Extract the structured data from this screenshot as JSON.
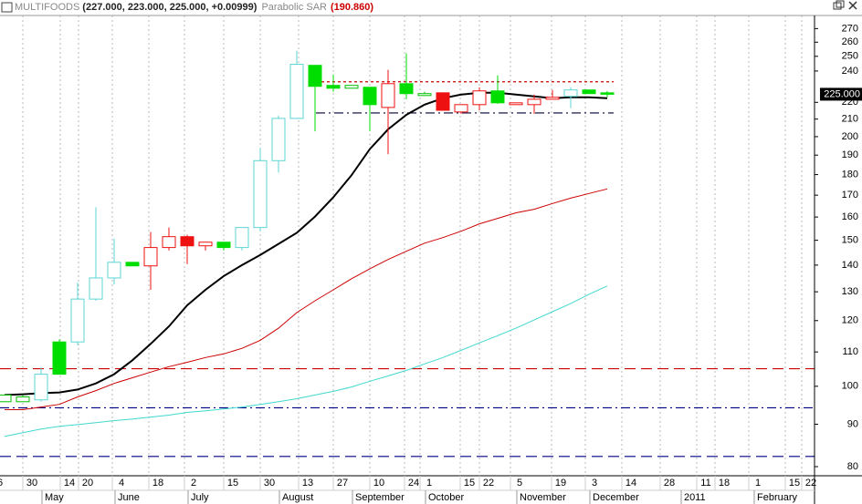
{
  "chart_data": {
    "type": "candlestick",
    "title": "MULTIFOODS",
    "subtitle": "(227.000, 223.000, 225.000, +0.00999)",
    "indicator": "Parabolic SAR",
    "indicator_value": "(190.860)",
    "log_scale": true,
    "xlim": [
      -0.25,
      44.35
    ],
    "ylim": [
      78,
      280
    ],
    "yticks": [
      80,
      90,
      100,
      110,
      120,
      130,
      140,
      150,
      160,
      170,
      180,
      190,
      200,
      210,
      220,
      240,
      250,
      260,
      270
    ],
    "xticks": [
      {
        "value": -0.75,
        "label": "6"
      },
      {
        "value": 1.0,
        "label": "30"
      },
      {
        "value": 3.05,
        "label": "14"
      },
      {
        "value": 4.05,
        "label": "20"
      },
      {
        "value": 5.9,
        "label": "4"
      },
      {
        "value": 7.9,
        "label": "18"
      },
      {
        "value": 9.85,
        "label": "2"
      },
      {
        "value": 12.0,
        "label": "15"
      },
      {
        "value": 14.0,
        "label": "30"
      },
      {
        "value": 16.1,
        "label": "13"
      },
      {
        "value": 18.0,
        "label": "27"
      },
      {
        "value": 20.0,
        "label": "10"
      },
      {
        "value": 21.9,
        "label": "24"
      },
      {
        "value": 22.75,
        "label": "1"
      },
      {
        "value": 24.95,
        "label": "15"
      },
      {
        "value": 26.0,
        "label": "22"
      },
      {
        "value": 27.7,
        "label": "5"
      },
      {
        "value": 29.95,
        "label": "19"
      },
      {
        "value": 31.8,
        "label": "3"
      },
      {
        "value": 33.8,
        "label": "14"
      },
      {
        "value": 35.9,
        "label": "28"
      },
      {
        "value": 37.9,
        "label": "11"
      },
      {
        "value": 38.9,
        "label": "18"
      },
      {
        "value": 40.75,
        "label": "1"
      },
      {
        "value": 42.75,
        "label": "15"
      },
      {
        "value": 43.65,
        "label": "22"
      }
    ],
    "month_ticks": [
      {
        "value": 2.05,
        "label": "May"
      },
      {
        "value": 6.05,
        "label": "June"
      },
      {
        "value": 10.05,
        "label": "July"
      },
      {
        "value": 15.05,
        "label": "August"
      },
      {
        "value": 19.05,
        "label": "September"
      },
      {
        "value": 23.05,
        "label": "October"
      },
      {
        "value": 28.05,
        "label": "November"
      },
      {
        "value": 32.05,
        "label": "December"
      },
      {
        "value": 37.05,
        "label": "2011"
      },
      {
        "value": 41.05,
        "label": "February"
      }
    ],
    "grid": true,
    "x": [
      0,
      1,
      2,
      3,
      4,
      5,
      6,
      7,
      8,
      9,
      10,
      11,
      12,
      13,
      14,
      15,
      16,
      17,
      18,
      19,
      20,
      21,
      22,
      23,
      24,
      25,
      26,
      27,
      28,
      29,
      30,
      31,
      32,
      33
    ],
    "open": [
      95.8,
      95.8,
      96.3,
      103.4,
      113.1,
      127.4,
      135.1,
      141.1,
      139.7,
      147.0,
      151.5,
      147.7,
      149.2,
      147.0,
      155.4,
      187.1,
      210.4,
      243.8,
      230.6,
      228.8,
      229.4,
      216.9,
      231.7,
      224.2,
      225.9,
      214.2,
      218.6,
      227.1,
      218.6,
      218.6,
      221.9,
      223.7,
      227.7,
      225.9
    ],
    "high": [
      97.6,
      97.6,
      105.3,
      113.9,
      133.4,
      164.4,
      150.7,
      141.1,
      153.5,
      155.4,
      152.3,
      149.2,
      149.2,
      155.4,
      193.9,
      212.0,
      253.9,
      243.8,
      237.7,
      230.6,
      229.4,
      240.8,
      252.1,
      226.5,
      225.9,
      218.6,
      229.4,
      237.1,
      219.7,
      224.8,
      227.7,
      229.4,
      227.7,
      227
    ],
    "low": [
      95.8,
      95.8,
      95.8,
      103.4,
      112.2,
      126.8,
      132.7,
      139.7,
      130.7,
      145.8,
      140.4,
      145.8,
      145.8,
      145.8,
      153.8,
      181.0,
      210.4,
      203.0,
      226.5,
      228.8,
      203.0,
      190.5,
      221.9,
      224.2,
      215.2,
      213.1,
      215.2,
      219.1,
      218.6,
      213.1,
      221.9,
      216.4,
      225.4,
      223
    ],
    "close": [
      97.6,
      97.1,
      103.4,
      113.1,
      127.4,
      135.1,
      141.1,
      139.7,
      147.0,
      151.5,
      147.7,
      149.2,
      147.0,
      155.4,
      187.1,
      210.4,
      244.5,
      230.0,
      228.8,
      230.6,
      218.6,
      231.7,
      225.4,
      225.4,
      215.2,
      218.6,
      227.1,
      219.7,
      219.7,
      221.9,
      223.1,
      227.7,
      225.4,
      225
    ],
    "colors": [
      "#00c000",
      "#00c000",
      "#5cd6d6",
      "#00dd00",
      "#5cd6d6",
      "#5cd6d6",
      "#5cd6d6",
      "#00dd00",
      "#ee1111",
      "#ee1111",
      "#ee1111",
      "#ee1111",
      "#00dd00",
      "#5cd6d6",
      "#5cd6d6",
      "#5cd6d6",
      "#5cd6d6",
      "#00dd00",
      "#00dd00",
      "#00c000",
      "#00dd00",
      "#ee1111",
      "#00dd00",
      "#00c000",
      "#ee1111",
      "#ee1111",
      "#ee1111",
      "#00dd00",
      "#ee1111",
      "#ee1111",
      "#ee1111",
      "#5cd6d6",
      "#00dd00",
      "#00dd00"
    ],
    "filled": [
      false,
      false,
      false,
      true,
      false,
      false,
      false,
      true,
      false,
      false,
      true,
      false,
      true,
      false,
      false,
      false,
      false,
      true,
      true,
      false,
      true,
      false,
      true,
      false,
      true,
      false,
      false,
      true,
      false,
      false,
      false,
      false,
      true,
      true
    ],
    "lines": [
      {
        "color": "#000000",
        "width": 2,
        "values": [
          97.6,
          97.8,
          98.1,
          98.3,
          99.1,
          100.8,
          103.4,
          107.5,
          112.5,
          118.1,
          125.2,
          130.7,
          135.8,
          140.0,
          144.0,
          148.5,
          153.1,
          160.2,
          169.0,
          179.7,
          193.2,
          204.1,
          212.5,
          218.6,
          222.5,
          224.8,
          225.9,
          225.9,
          224.8,
          223.7,
          222.5,
          223.1,
          223.1,
          222.5
        ]
      },
      {
        "color": "#cc0000",
        "width": 1,
        "values": [
          93.7,
          93.7,
          94.4,
          95.1,
          97.1,
          98.8,
          100.8,
          102.4,
          104.0,
          105.6,
          106.9,
          108.3,
          109.4,
          111.1,
          113.6,
          117.5,
          122.7,
          126.8,
          130.7,
          134.8,
          138.6,
          142.2,
          145.5,
          148.8,
          151.1,
          153.8,
          157.0,
          159.4,
          161.9,
          163.5,
          166.1,
          168.6,
          170.8,
          173.0
        ]
      },
      {
        "color": "#40d8d0",
        "width": 1,
        "values": [
          87.0,
          87.9,
          88.8,
          89.5,
          89.9,
          90.4,
          90.9,
          91.3,
          91.8,
          92.3,
          93.0,
          93.4,
          93.9,
          94.4,
          95.1,
          95.8,
          96.6,
          97.6,
          98.6,
          99.8,
          101.4,
          102.9,
          104.5,
          106.4,
          108.3,
          110.5,
          112.8,
          115.1,
          117.5,
          120.2,
          123.0,
          125.8,
          129.1,
          132.1
        ]
      }
    ],
    "hlines": [
      {
        "value": 105.0,
        "color": "#cc0000",
        "dash": "12,6"
      },
      {
        "value": 94.2,
        "color": "#000080",
        "dash": "10,4,2,4"
      },
      {
        "value": 82.3,
        "color": "#000080",
        "dash": "12,6"
      },
      {
        "value": 213.6,
        "color": "#000033",
        "dash": "10,4,2,4",
        "from": 17.05,
        "to": 33.35
      },
      {
        "value": 232.9,
        "color": "#cc0000",
        "dash": "3,3",
        "from": 17.05,
        "to": 33.35
      }
    ],
    "last_price": {
      "value": 225,
      "label": "225.000"
    }
  }
}
